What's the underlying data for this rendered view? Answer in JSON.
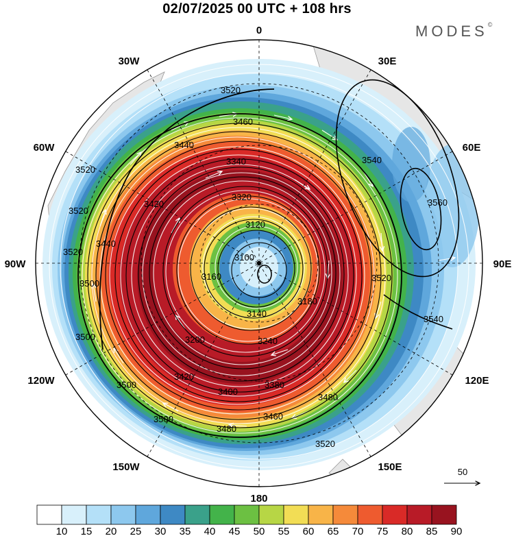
{
  "title": "02/07/2025  00 UTC  + 108 hrs",
  "brand": "MODES",
  "brand_mark": "©",
  "longitude_labels": {
    "top": "0",
    "top_left": "30W",
    "top_right": "30E",
    "upper_left": "60W",
    "upper_right": "60E",
    "left": "90W",
    "right": "90E",
    "lower_left": "120W",
    "lower_right": "120E",
    "bottom_left": "150W",
    "bottom_right": "150E",
    "bottom": "180"
  },
  "contour_labels": [
    "3520",
    "3460",
    "3440",
    "3340",
    "3320",
    "3540",
    "3560",
    "3520",
    "3520",
    "3520",
    "3440",
    "3420",
    "3120",
    "3100",
    "3160",
    "3140",
    "3180",
    "3500",
    "3520",
    "3540",
    "3500",
    "3500",
    "3240",
    "3200",
    "3420",
    "3400",
    "3380",
    "3480",
    "3460",
    "3500",
    "3480",
    "3520"
  ],
  "vector_reference": {
    "label": "50"
  },
  "colorbar": {
    "colors": [
      "#ffffff",
      "#d8f0fb",
      "#b4e0f8",
      "#8dc8ee",
      "#5fa7dc",
      "#3e89c4",
      "#3aa18a",
      "#43b34a",
      "#6cc042",
      "#b7d645",
      "#f2dd55",
      "#f8b448",
      "#f58a3a",
      "#ee5b2f",
      "#d92a27",
      "#b81b27",
      "#98131f"
    ],
    "tick_labels": [
      "10",
      "15",
      "20",
      "25",
      "30",
      "35",
      "40",
      "45",
      "50",
      "55",
      "60",
      "65",
      "70",
      "75",
      "80",
      "85",
      "90"
    ]
  },
  "palette": {
    "speed_colors": [
      "#d8f0fb",
      "#b4e0f8",
      "#8dc8ee",
      "#5fa7dc",
      "#3e89c4",
      "#3aa18a",
      "#43b34a",
      "#6cc042",
      "#b7d645",
      "#f2dd55",
      "#f8b448",
      "#f58a3a",
      "#ee5b2f",
      "#d92a27",
      "#b81b27",
      "#98131f"
    ],
    "land": "#e8e8e8"
  }
}
